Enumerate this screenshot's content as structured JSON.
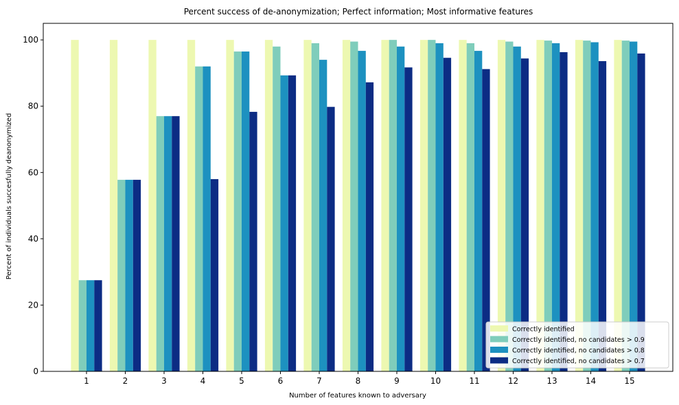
{
  "chart_data": {
    "type": "bar",
    "title": "Percent success of de-anonymization; Perfect information; Most informative features",
    "xlabel": "Number of features known to adversary",
    "ylabel": "Percent of individuals succesfully deanonymized",
    "ylim": [
      0,
      105
    ],
    "yticks": [
      0,
      20,
      40,
      60,
      80,
      100
    ],
    "categories": [
      "1",
      "2",
      "3",
      "4",
      "5",
      "6",
      "7",
      "8",
      "9",
      "10",
      "11",
      "12",
      "13",
      "14",
      "15"
    ],
    "series": [
      {
        "name": "Correctly identified",
        "color": "#edf8b1",
        "values": [
          100,
          100,
          100,
          100,
          100,
          100,
          100,
          100,
          100,
          100,
          100,
          100,
          100,
          100,
          100
        ]
      },
      {
        "name": "Correctly identified, no candidates > 0.9",
        "color": "#7fcdbb",
        "values": [
          27.5,
          57.8,
          77,
          92,
          96.5,
          98,
          99,
          99.5,
          100,
          100,
          99,
          99.5,
          99.8,
          99.8,
          99.8
        ]
      },
      {
        "name": "Correctly identified, no candidates > 0.8",
        "color": "#1d91c0",
        "values": [
          27.5,
          57.8,
          77,
          92,
          96.5,
          89.3,
          94,
          96.7,
          98,
          99,
          96.7,
          98,
          99,
          99.3,
          99.5
        ]
      },
      {
        "name": "Correctly identified, no candidates > 0.7",
        "color": "#0c2c84",
        "values": [
          27.5,
          57.8,
          77,
          58,
          78.3,
          89.3,
          79.8,
          87.2,
          91.7,
          94.6,
          91.2,
          94.4,
          96.3,
          93.6,
          95.9
        ]
      }
    ],
    "legend_position": "lower-right",
    "grid": false
  }
}
